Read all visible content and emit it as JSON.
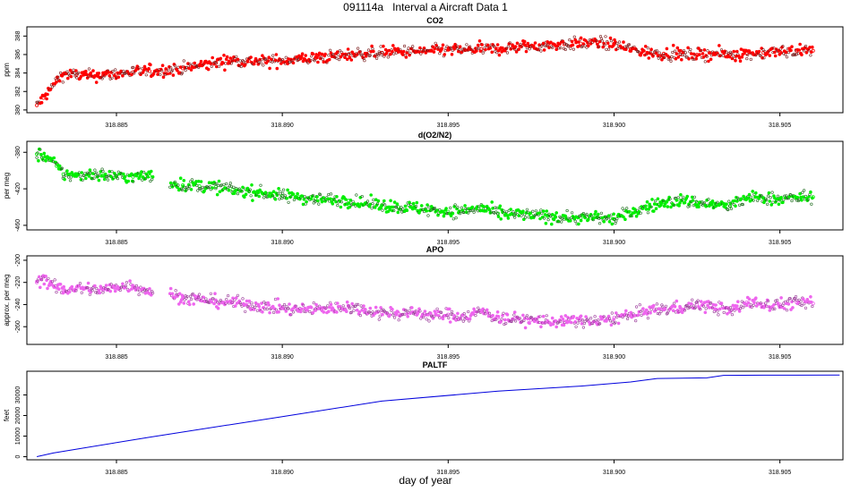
{
  "figure": {
    "title": "091114a   Interval a Aircraft Data 1",
    "xlabel": "day of year"
  },
  "chart_data": [
    {
      "type": "scatter",
      "title": "CO2",
      "ylabel": "ppm",
      "xlim": [
        318.8823,
        318.9069
      ],
      "ylim": [
        379.7,
        389.0
      ],
      "xticks": [
        "318.885",
        "318.890",
        "318.895",
        "318.900",
        "318.905"
      ],
      "yticks": [
        "380",
        "382",
        "384",
        "386",
        "388"
      ],
      "color": "#ff0000",
      "x": [
        318.8826,
        318.8828,
        318.883,
        318.8832,
        318.8834,
        318.8838,
        318.8842,
        318.8846,
        318.885,
        318.8855,
        318.886,
        318.8865,
        318.887,
        318.8875,
        318.888,
        318.8885,
        318.889,
        318.8895,
        318.89,
        318.8905,
        318.891,
        318.8915,
        318.892,
        318.8925,
        318.893,
        318.8935,
        318.894,
        318.8945,
        318.895,
        318.8955,
        318.896,
        318.8965,
        318.897,
        318.8975,
        318.898,
        318.8985,
        318.899,
        318.8995,
        318.9,
        318.9005,
        318.901,
        318.9015,
        318.902,
        318.9025,
        318.903,
        318.9035,
        318.904,
        318.9045,
        318.905,
        318.9055,
        318.906
      ],
      "y": [
        380.5,
        381.3,
        382.2,
        383.2,
        383.9,
        383.8,
        383.7,
        383.8,
        383.9,
        384.1,
        384.2,
        384.3,
        384.5,
        384.8,
        385.1,
        385.4,
        385.3,
        385.2,
        385.4,
        385.5,
        385.6,
        385.8,
        386.0,
        386.1,
        386.2,
        386.3,
        386.3,
        386.4,
        386.5,
        386.5,
        386.6,
        386.6,
        386.8,
        386.9,
        387.0,
        387.1,
        387.2,
        387.3,
        387.1,
        386.6,
        386.2,
        386.1,
        386.0,
        386.0,
        386.1,
        386.0,
        386.1,
        386.2,
        386.3,
        386.4,
        386.4
      ]
    },
    {
      "type": "scatter",
      "title": "d(O2/N2)",
      "ylabel": "per meg",
      "xlim": [
        318.8823,
        318.9069
      ],
      "ylim": [
        -465,
        -368
      ],
      "xticks": [
        "318.885",
        "318.890",
        "318.895",
        "318.900",
        "318.905"
      ],
      "yticks": [
        "-380",
        "-420",
        "-460"
      ],
      "color": "#00ee00",
      "x": [
        318.8826,
        318.8828,
        318.883,
        318.8832,
        318.8834,
        318.8838,
        318.8842,
        318.8846,
        318.885,
        318.8855,
        318.886,
        318.8868,
        318.887,
        318.8875,
        318.888,
        318.8885,
        318.889,
        318.8895,
        318.89,
        318.8905,
        318.891,
        318.8915,
        318.892,
        318.8925,
        318.893,
        318.8935,
        318.894,
        318.8945,
        318.895,
        318.8955,
        318.896,
        318.8965,
        318.897,
        318.8975,
        318.898,
        318.8985,
        318.899,
        318.8995,
        318.9,
        318.9005,
        318.901,
        318.9015,
        318.902,
        318.9025,
        318.903,
        318.9035,
        318.904,
        318.9045,
        318.905,
        318.9055,
        318.906
      ],
      "y": [
        -382,
        -384,
        -388,
        -395,
        -404,
        -406,
        -403,
        -405,
        -406,
        -407,
        -406,
        -415,
        -416,
        -417,
        -418,
        -421,
        -423,
        -425,
        -428,
        -429,
        -431,
        -432,
        -433,
        -436,
        -438,
        -440,
        -441,
        -443,
        -445,
        -444,
        -441,
        -447,
        -448,
        -449,
        -450,
        -451,
        -452,
        -451,
        -453,
        -446,
        -440,
        -435,
        -433,
        -435,
        -437,
        -439,
        -430,
        -430,
        -431,
        -430,
        -429
      ]
    },
    {
      "type": "scatter",
      "title": "APO",
      "ylabel": "approx. per meg",
      "xlim": [
        318.8823,
        318.9069
      ],
      "ylim": [
        -276,
        -196
      ],
      "xticks": [
        "318.885",
        "318.890",
        "318.895",
        "318.900",
        "318.905"
      ],
      "yticks": [
        "-200",
        "-220",
        "-240",
        "-260"
      ],
      "color": "#ee66ee",
      "x": [
        318.8826,
        318.8828,
        318.883,
        318.8832,
        318.8834,
        318.8838,
        318.8842,
        318.8846,
        318.885,
        318.8855,
        318.886,
        318.8868,
        318.887,
        318.8875,
        318.888,
        318.8885,
        318.889,
        318.8895,
        318.89,
        318.8905,
        318.891,
        318.8915,
        318.892,
        318.8925,
        318.893,
        318.8935,
        318.894,
        318.8945,
        318.895,
        318.8955,
        318.896,
        318.8965,
        318.897,
        318.8975,
        318.898,
        318.8985,
        318.899,
        318.8995,
        318.9,
        318.9005,
        318.901,
        318.9015,
        318.902,
        318.9025,
        318.903,
        318.9035,
        318.904,
        318.9045,
        318.905,
        318.9055,
        318.906
      ],
      "y": [
        -220,
        -215,
        -222,
        -225,
        -227,
        -225,
        -226,
        -227,
        -224,
        -223,
        -228,
        -232,
        -234,
        -235,
        -237,
        -238,
        -240,
        -242,
        -243,
        -245,
        -244,
        -243,
        -242,
        -245,
        -247,
        -248,
        -247,
        -250,
        -249,
        -251,
        -246,
        -252,
        -253,
        -254,
        -255,
        -256,
        -254,
        -256,
        -252,
        -250,
        -246,
        -244,
        -243,
        -240,
        -242,
        -246,
        -238,
        -240,
        -240,
        -238,
        -239
      ]
    },
    {
      "type": "line",
      "title": "PALTF",
      "ylabel": "feet",
      "xlim": [
        318.8823,
        318.9069
      ],
      "ylim": [
        -1500,
        41500
      ],
      "xticks": [
        "318.885",
        "318.890",
        "318.895",
        "318.900",
        "318.905"
      ],
      "yticks": [
        "0",
        "10000",
        "20000",
        "30000"
      ],
      "color": "#0000dd",
      "x": [
        318.8826,
        318.8831,
        318.886,
        318.89,
        318.893,
        318.8965,
        318.899,
        318.9005,
        318.9013,
        318.9028,
        318.9033,
        318.9045,
        318.9068
      ],
      "y": [
        0,
        1800,
        9500,
        19500,
        27000,
        31800,
        34300,
        36300,
        38000,
        38300,
        39500,
        39600,
        39650
      ]
    }
  ]
}
